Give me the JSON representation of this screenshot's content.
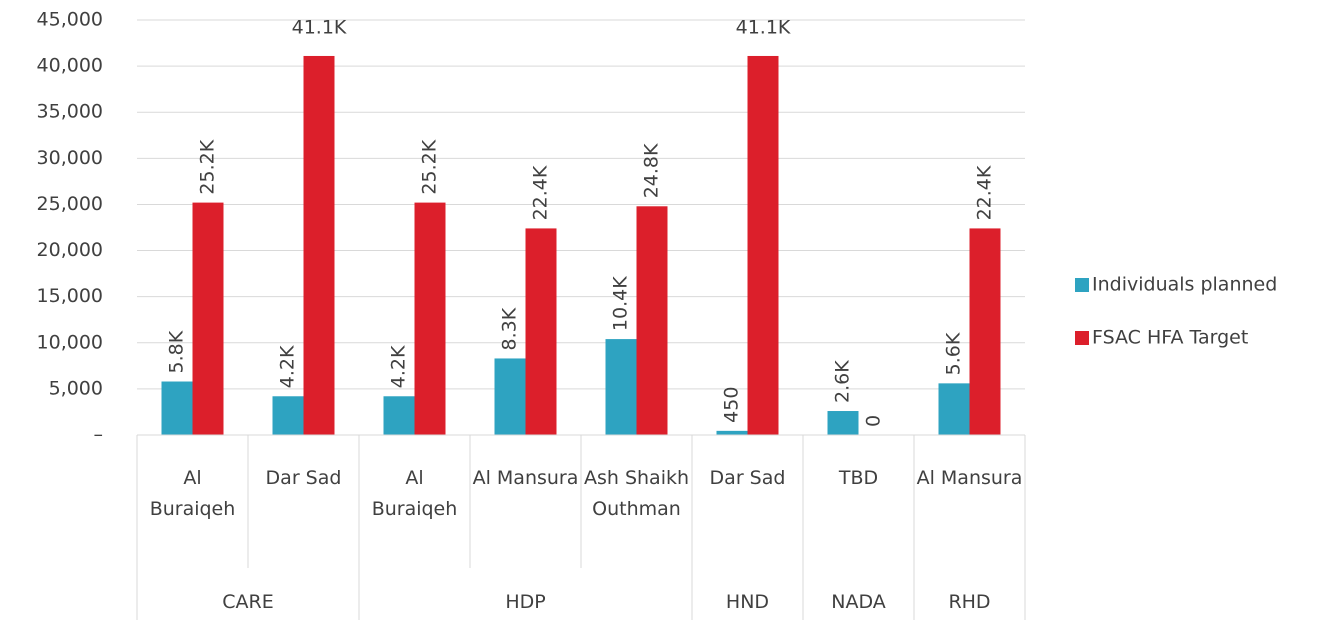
{
  "chart_data": {
    "type": "bar",
    "categories": [
      "Al Buraiqeh",
      "Dar Sad",
      "Al Buraiqeh",
      "Al Mansura",
      "Ash Shaikh Outhman",
      "Dar Sad",
      "TBD",
      "Al Mansura"
    ],
    "category_groups": [
      "CARE",
      "CARE",
      "HDP",
      "HDP",
      "HDP",
      "HND",
      "NADA",
      "RHD"
    ],
    "series": [
      {
        "name": "Individuals planned",
        "color": "#2ea3c1",
        "values": [
          5800,
          4200,
          4200,
          8300,
          10400,
          450,
          2600,
          5600
        ],
        "value_labels": [
          "5.8K",
          "4.2K",
          "4.2K",
          "8.3K",
          "10.4K",
          "450",
          "2.6K",
          "5.6K"
        ]
      },
      {
        "name": "FSAC HFA Target",
        "color": "#dc1f2b",
        "values": [
          25200,
          41100,
          25200,
          22400,
          24800,
          41100,
          0,
          22400
        ],
        "value_labels": [
          "25.2K",
          "41.1K",
          "25.2K",
          "22.4K",
          "24.8K",
          "41.1K",
          "0",
          "22.4K"
        ]
      }
    ],
    "ylim": [
      0,
      45000
    ],
    "yticks": [
      {
        "value": 0,
        "label": "–"
      },
      {
        "value": 5000,
        "label": "5,000"
      },
      {
        "value": 10000,
        "label": "10,000"
      },
      {
        "value": 15000,
        "label": "15,000"
      },
      {
        "value": 20000,
        "label": "20,000"
      },
      {
        "value": 25000,
        "label": "25,000"
      },
      {
        "value": 30000,
        "label": "30,000"
      },
      {
        "value": 35000,
        "label": "35,000"
      },
      {
        "value": 40000,
        "label": "40,000"
      },
      {
        "value": 45000,
        "label": "45,000"
      }
    ],
    "grid": true,
    "legend": "right"
  }
}
